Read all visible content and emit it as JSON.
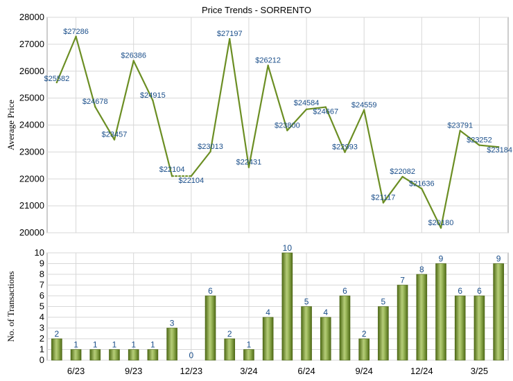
{
  "chart_data": [
    {
      "type": "line",
      "title": "Price Trends - SORRENTO",
      "ylabel": "Average Price",
      "ylim": [
        20000,
        28000
      ],
      "yticks": [
        "20000",
        "21000",
        "22000",
        "23000",
        "24000",
        "25000",
        "26000",
        "27000",
        "28000"
      ],
      "grid": true,
      "color": "#6b8e23",
      "series": [
        {
          "values": [
            25582,
            27286,
            24678,
            23457,
            26386,
            24915,
            22104,
            22104,
            23013,
            27197,
            22431,
            26212,
            23800,
            24584,
            24667,
            22993,
            24559,
            21117,
            22082,
            21636,
            20180,
            23791,
            23252,
            23184
          ],
          "labels": [
            "$25582",
            "$27286",
            "$24678",
            "$23457",
            "$26386",
            "$24915",
            "$22104",
            "$22104",
            "$23013",
            "$27197",
            "$22431",
            "$26212",
            "$23800",
            "$24584",
            "$24667",
            "$22993",
            "$24559",
            "$21117",
            "$22082",
            "$21636",
            "$20180",
            "$23791",
            "$23252",
            "$23184"
          ]
        }
      ],
      "dotted_segments": [
        [
          6,
          7
        ]
      ]
    },
    {
      "type": "bar",
      "ylabel": "No. of Transactions",
      "ylim": [
        0,
        10
      ],
      "yticks": [
        "0",
        "1",
        "2",
        "3",
        "4",
        "5",
        "6",
        "7",
        "8",
        "9",
        "10"
      ],
      "grid": true,
      "color": "#6b8e23",
      "categories": [
        "",
        "6/23",
        "",
        "",
        "9/23",
        "",
        "",
        "12/23",
        "",
        "",
        "3/24",
        "",
        "",
        "6/24",
        "",
        "",
        "9/24",
        "",
        "",
        "12/24",
        "",
        "",
        "3/25",
        ""
      ],
      "x_tick_labels": [
        "6/23",
        "9/23",
        "12/23",
        "3/24",
        "6/24",
        "9/24",
        "12/24",
        "3/25"
      ],
      "values": [
        2,
        1,
        1,
        1,
        1,
        1,
        3,
        0,
        6,
        2,
        1,
        4,
        10,
        5,
        4,
        6,
        2,
        5,
        7,
        8,
        9,
        6,
        6,
        9
      ]
    }
  ]
}
